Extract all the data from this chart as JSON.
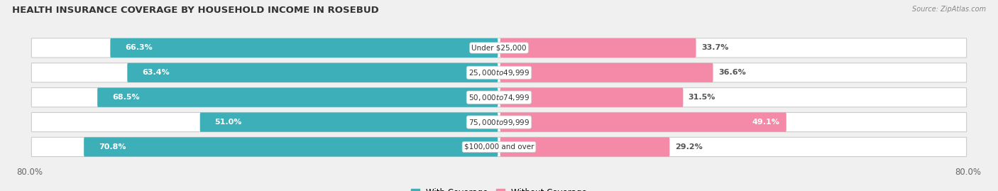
{
  "title": "HEALTH INSURANCE COVERAGE BY HOUSEHOLD INCOME IN ROSEBUD",
  "source": "Source: ZipAtlas.com",
  "categories": [
    "Under $25,000",
    "$25,000 to $49,999",
    "$50,000 to $74,999",
    "$75,000 to $99,999",
    "$100,000 and over"
  ],
  "with_coverage": [
    66.3,
    63.4,
    68.5,
    51.0,
    70.8
  ],
  "without_coverage": [
    33.7,
    36.6,
    31.5,
    49.1,
    29.2
  ],
  "color_coverage": "#3DAFB8",
  "color_without": "#F589A8",
  "bar_height": 0.62,
  "xlim_left": -80.0,
  "xlim_right": 80.0,
  "bg_color": "#f0f0f0",
  "bar_bg_color": "#e0e0e0",
  "row_bg_color": "#ebebeb",
  "title_fontsize": 9.5,
  "label_fontsize": 8,
  "cat_fontsize": 7.5,
  "tick_fontsize": 8.5,
  "legend_fontsize": 8.5
}
